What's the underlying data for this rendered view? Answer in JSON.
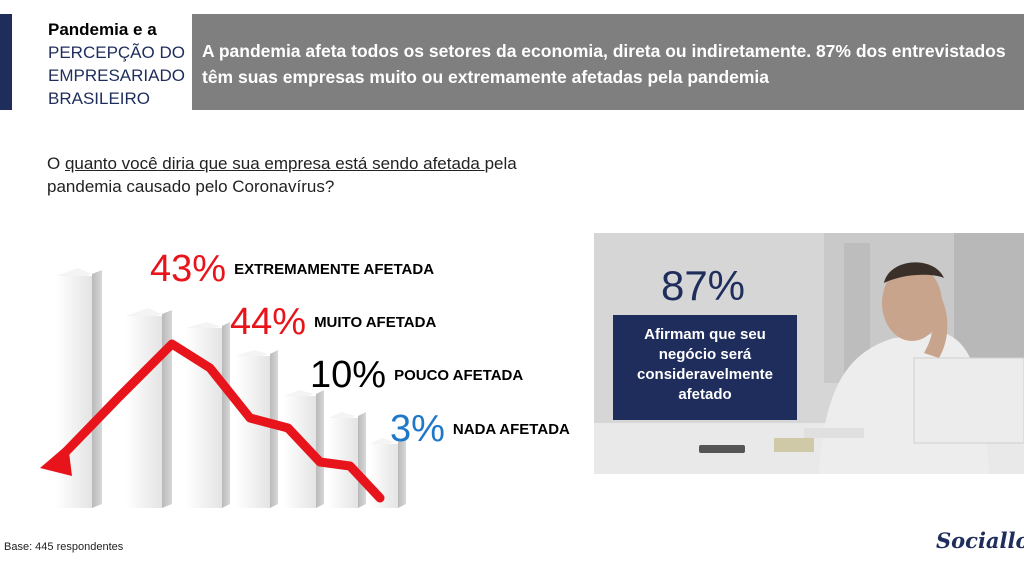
{
  "section": {
    "title_line1": "Pandemia e a",
    "title_line2": "PERCEPÇÃO DO EMPRESARIADO BRASILEIRO"
  },
  "header": {
    "text": "A pandemia afeta todos os setores da economia, direta ou indiretamente. 87% dos entrevistados têm suas empresas muito ou extremamente afetadas pela pandemia"
  },
  "question": {
    "prefix": "O ",
    "underlined": "quanto você diria que sua empresa está sendo afetada ",
    "suffix": "pela pandemia causado pelo Coronavírus?"
  },
  "results": [
    {
      "pct": "43%",
      "label": "EXTREMAMENTE AFETADA",
      "color": "#e8141b"
    },
    {
      "pct": "44%",
      "label": "MUITO AFETADA",
      "color": "#e8141b"
    },
    {
      "pct": "10%",
      "label": "POUCO AFETADA",
      "color": "#000000"
    },
    {
      "pct": "3%",
      "label": "NADA AFETADA",
      "color": "#1f77c8"
    }
  ],
  "highlight": {
    "pct": "87%",
    "text": "Afirmam que seu negócio será consideravelmente afetado"
  },
  "footer": {
    "base": "Base: 445 respondentes",
    "logo": "Sociallog"
  },
  "colors": {
    "navy": "#1f2d5c",
    "banner_gray": "#7f7f7f",
    "red": "#e8141b",
    "blue": "#1f77c8"
  },
  "icons": {
    "decline_chart": "falling-bar-chart-with-red-arrow",
    "photo": "stressed-businessman-photo"
  }
}
